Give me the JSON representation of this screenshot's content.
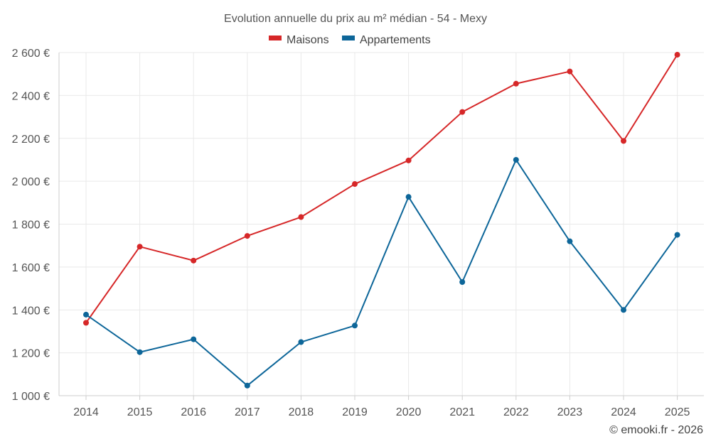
{
  "chart_data": {
    "type": "line",
    "title": "Evolution annuelle du prix au m² médian - 54 - Mexy",
    "categories": [
      "2014",
      "2015",
      "2016",
      "2017",
      "2018",
      "2019",
      "2020",
      "2021",
      "2022",
      "2023",
      "2024",
      "2025"
    ],
    "series": [
      {
        "name": "Maisons",
        "color": "#d62728",
        "values": [
          1340,
          1695,
          1630,
          1745,
          1833,
          1987,
          2097,
          2323,
          2455,
          2512,
          2188,
          2590
        ]
      },
      {
        "name": "Appartements",
        "color": "#0d6699",
        "values": [
          1378,
          1203,
          1263,
          1047,
          1250,
          1327,
          1927,
          1530,
          2100,
          1720,
          1400,
          1750
        ]
      }
    ],
    "ylim": [
      1000,
      2600
    ],
    "yticks": [
      1000,
      1200,
      1400,
      1600,
      1800,
      2000,
      2200,
      2400,
      2600
    ],
    "ytick_labels": [
      "1 000 €",
      "1 200 €",
      "1 400 €",
      "1 600 €",
      "1 800 €",
      "2 000 €",
      "2 200 €",
      "2 400 €",
      "2 600 €"
    ],
    "xlabel": "",
    "ylabel": "",
    "legend_position": "top-center",
    "grid": true
  },
  "footer": {
    "credit": "© emooki.fr - 2026"
  }
}
